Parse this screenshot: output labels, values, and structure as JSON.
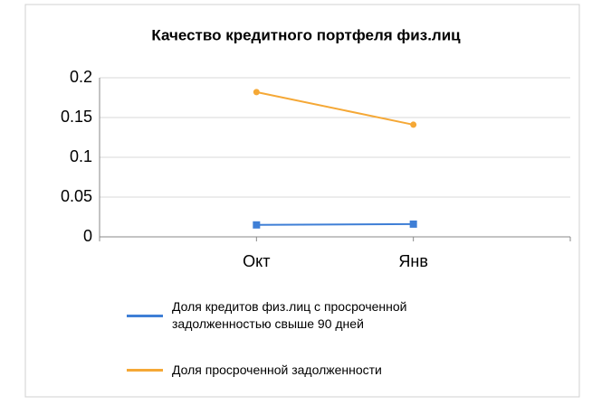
{
  "chart_data": {
    "type": "line",
    "title": "Качество кредитного портфеля физ.лиц",
    "categories": [
      null,
      "Окт",
      "Янв",
      null
    ],
    "series": [
      {
        "name": "Доля кредитов физ.лиц с просроченной задолженностью свыше 90 дней",
        "color": "#3f7fd6",
        "values": [
          null,
          0.015,
          0.016,
          null
        ]
      },
      {
        "name": "Доля просроченной задолженности",
        "color": "#f5a836",
        "values": [
          null,
          0.182,
          0.141,
          null
        ]
      }
    ],
    "ylim": [
      0,
      0.2
    ],
    "yticks": [
      0,
      0.05,
      0.1,
      0.15,
      0.2
    ],
    "grid": true
  }
}
